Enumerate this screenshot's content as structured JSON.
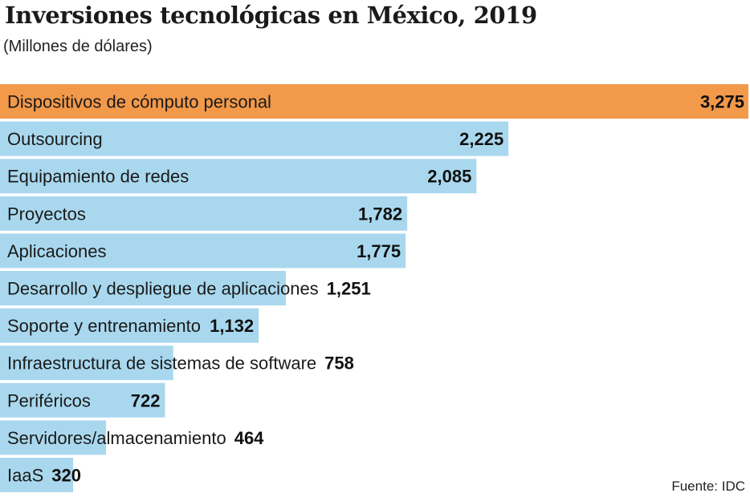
{
  "colors": {
    "highlight": "#F2994A",
    "bar": "#A9D8EE",
    "text": "#1A1A1A"
  },
  "chart_data": {
    "type": "bar",
    "orientation": "horizontal",
    "title": "Inversiones tecnológicas en México, 2019",
    "subtitle": "(Millones de dólares)",
    "xlabel": "",
    "ylabel": "",
    "xlim": [
      0,
      3275
    ],
    "grid": false,
    "legend": "none",
    "categories": [
      "Dispositivos de cómputo personal",
      "Outsourcing",
      "Equipamiento de redes",
      "Proyectos",
      "Aplicaciones",
      "Desarrollo y despliegue de aplicaciones",
      "Soporte y entrenamiento",
      "Infraestructura de sistemas de software",
      "Periféricos",
      "Servidores/almacenamiento",
      "IaaS"
    ],
    "values": [
      3275,
      2225,
      2085,
      1782,
      1775,
      1251,
      1132,
      758,
      722,
      464,
      320
    ],
    "value_labels": [
      "3,275",
      "2,225",
      "2,085",
      "1,782",
      "1,775",
      "1,251",
      "1,132",
      "758",
      "722",
      "464",
      "320"
    ],
    "highlight_index": 0
  },
  "source": "Fuente: IDC"
}
